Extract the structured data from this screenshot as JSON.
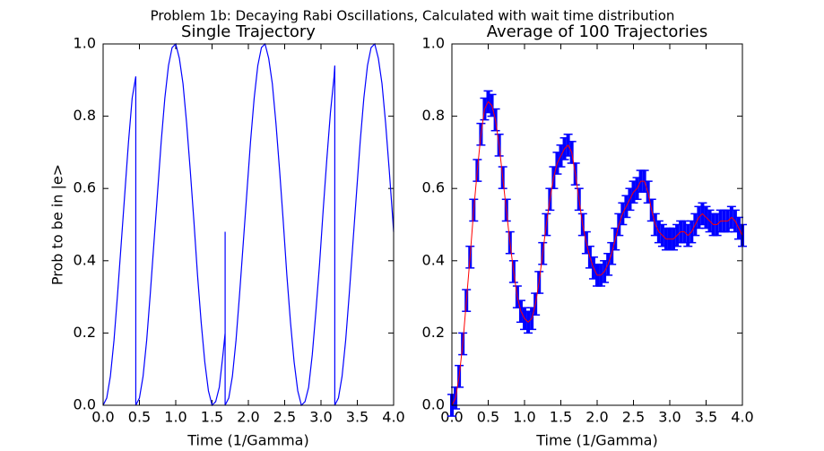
{
  "title": "Problem 1b: Decaying Rabi Oscillations, Calculated with wait time distribution",
  "chart_data": [
    {
      "type": "line",
      "title": "Single Trajectory",
      "xlabel": "Time (1/Gamma)",
      "ylabel": "Prob to be in |e>",
      "color": "#0000ff",
      "x": [
        0,
        0.05,
        0.1,
        0.15,
        0.2,
        0.25,
        0.3,
        0.35,
        0.4,
        0.45,
        0.45,
        0.5,
        0.55,
        0.6,
        0.65,
        0.7,
        0.75,
        0.8,
        0.85,
        0.9,
        0.95,
        1.0,
        1.05,
        1.1,
        1.15,
        1.2,
        1.25,
        1.3,
        1.35,
        1.4,
        1.45,
        1.5,
        1.55,
        1.6,
        1.65,
        1.68,
        1.68,
        1.68,
        1.73,
        1.78,
        1.83,
        1.88,
        1.93,
        1.98,
        2.03,
        2.08,
        2.13,
        2.18,
        2.23,
        2.28,
        2.33,
        2.38,
        2.43,
        2.48,
        2.53,
        2.58,
        2.63,
        2.68,
        2.73,
        2.78,
        2.83,
        2.88,
        2.93,
        2.98,
        3.03,
        3.08,
        3.13,
        3.18,
        3.19,
        3.19,
        3.24,
        3.29,
        3.34,
        3.39,
        3.44,
        3.49,
        3.54,
        3.59,
        3.64,
        3.69,
        3.74,
        3.79,
        3.84,
        3.89,
        3.94,
        3.99,
        4.0
      ],
      "values": [
        0,
        0.02,
        0.08,
        0.18,
        0.31,
        0.45,
        0.59,
        0.73,
        0.85,
        0.91,
        0,
        0.02,
        0.08,
        0.18,
        0.31,
        0.45,
        0.59,
        0.73,
        0.85,
        0.94,
        0.99,
        1.0,
        0.96,
        0.89,
        0.78,
        0.65,
        0.51,
        0.36,
        0.23,
        0.12,
        0.04,
        0,
        0.01,
        0.05,
        0.14,
        0.2,
        0.48,
        0,
        0.02,
        0.08,
        0.18,
        0.31,
        0.45,
        0.59,
        0.73,
        0.85,
        0.94,
        0.99,
        1.0,
        0.96,
        0.89,
        0.78,
        0.65,
        0.51,
        0.36,
        0.23,
        0.12,
        0.04,
        0,
        0.01,
        0.05,
        0.14,
        0.26,
        0.39,
        0.54,
        0.68,
        0.81,
        0.91,
        0.94,
        0,
        0.02,
        0.08,
        0.18,
        0.31,
        0.45,
        0.59,
        0.73,
        0.85,
        0.94,
        0.99,
        1.0,
        0.96,
        0.89,
        0.78,
        0.65,
        0.51,
        0.48
      ],
      "xlim": [
        0,
        4
      ],
      "ylim": [
        0,
        1
      ],
      "xticks": [
        {
          "value": 0,
          "label": "0.0"
        },
        {
          "value": 0.5,
          "label": "0.5"
        },
        {
          "value": 1,
          "label": "1.0"
        },
        {
          "value": 1.5,
          "label": "1.5"
        },
        {
          "value": 2,
          "label": "2.0"
        },
        {
          "value": 2.5,
          "label": "2.5"
        },
        {
          "value": 3,
          "label": "3.0"
        },
        {
          "value": 3.5,
          "label": "3.5"
        },
        {
          "value": 4,
          "label": "4.0"
        }
      ],
      "yticks": [
        {
          "value": 0,
          "label": "0.0"
        },
        {
          "value": 0.2,
          "label": "0.2"
        },
        {
          "value": 0.4,
          "label": "0.4"
        },
        {
          "value": 0.6,
          "label": "0.6"
        },
        {
          "value": 0.8,
          "label": "0.8"
        },
        {
          "value": 1,
          "label": "1.0"
        }
      ]
    },
    {
      "type": "errorbar",
      "title": "Average of 100 Trajectories",
      "xlabel": "Time (1/Gamma)",
      "color": "#ff0000",
      "error_color": "#0000ff",
      "error": 0.03,
      "x": [
        0,
        0.05,
        0.1,
        0.15,
        0.2,
        0.25,
        0.3,
        0.35,
        0.4,
        0.45,
        0.5,
        0.55,
        0.6,
        0.65,
        0.7,
        0.75,
        0.8,
        0.85,
        0.9,
        0.95,
        1.0,
        1.05,
        1.1,
        1.15,
        1.2,
        1.25,
        1.3,
        1.35,
        1.4,
        1.45,
        1.5,
        1.55,
        1.6,
        1.65,
        1.7,
        1.75,
        1.8,
        1.85,
        1.9,
        1.95,
        2.0,
        2.05,
        2.1,
        2.15,
        2.2,
        2.25,
        2.3,
        2.35,
        2.4,
        2.45,
        2.5,
        2.55,
        2.6,
        2.65,
        2.7,
        2.75,
        2.8,
        2.85,
        2.9,
        2.95,
        3.0,
        3.05,
        3.1,
        3.15,
        3.2,
        3.25,
        3.3,
        3.35,
        3.4,
        3.45,
        3.5,
        3.55,
        3.6,
        3.65,
        3.7,
        3.75,
        3.8,
        3.85,
        3.9,
        3.95,
        4.0
      ],
      "values": [
        0,
        0.02,
        0.08,
        0.17,
        0.29,
        0.41,
        0.54,
        0.65,
        0.75,
        0.82,
        0.84,
        0.83,
        0.79,
        0.72,
        0.63,
        0.54,
        0.45,
        0.37,
        0.3,
        0.26,
        0.24,
        0.23,
        0.24,
        0.28,
        0.34,
        0.42,
        0.5,
        0.57,
        0.63,
        0.67,
        0.69,
        0.71,
        0.72,
        0.7,
        0.64,
        0.57,
        0.5,
        0.45,
        0.41,
        0.38,
        0.36,
        0.36,
        0.37,
        0.39,
        0.42,
        0.46,
        0.5,
        0.53,
        0.55,
        0.57,
        0.59,
        0.6,
        0.62,
        0.62,
        0.59,
        0.54,
        0.5,
        0.48,
        0.47,
        0.46,
        0.46,
        0.46,
        0.47,
        0.48,
        0.48,
        0.47,
        0.48,
        0.5,
        0.52,
        0.53,
        0.52,
        0.51,
        0.5,
        0.5,
        0.51,
        0.51,
        0.51,
        0.52,
        0.51,
        0.49,
        0.47
      ],
      "xlim": [
        0,
        4
      ],
      "ylim": [
        0,
        1
      ],
      "xticks": [
        {
          "value": 0,
          "label": "0.0"
        },
        {
          "value": 0.5,
          "label": "0.5"
        },
        {
          "value": 1,
          "label": "1.0"
        },
        {
          "value": 1.5,
          "label": "1.5"
        },
        {
          "value": 2,
          "label": "2.0"
        },
        {
          "value": 2.5,
          "label": "2.5"
        },
        {
          "value": 3,
          "label": "3.0"
        },
        {
          "value": 3.5,
          "label": "3.5"
        },
        {
          "value": 4,
          "label": "4.0"
        }
      ],
      "yticks": [
        {
          "value": 0,
          "label": "0.0"
        },
        {
          "value": 0.2,
          "label": "0.2"
        },
        {
          "value": 0.4,
          "label": "0.4"
        },
        {
          "value": 0.6,
          "label": "0.6"
        },
        {
          "value": 0.8,
          "label": "0.8"
        },
        {
          "value": 1,
          "label": "1.0"
        }
      ]
    }
  ]
}
